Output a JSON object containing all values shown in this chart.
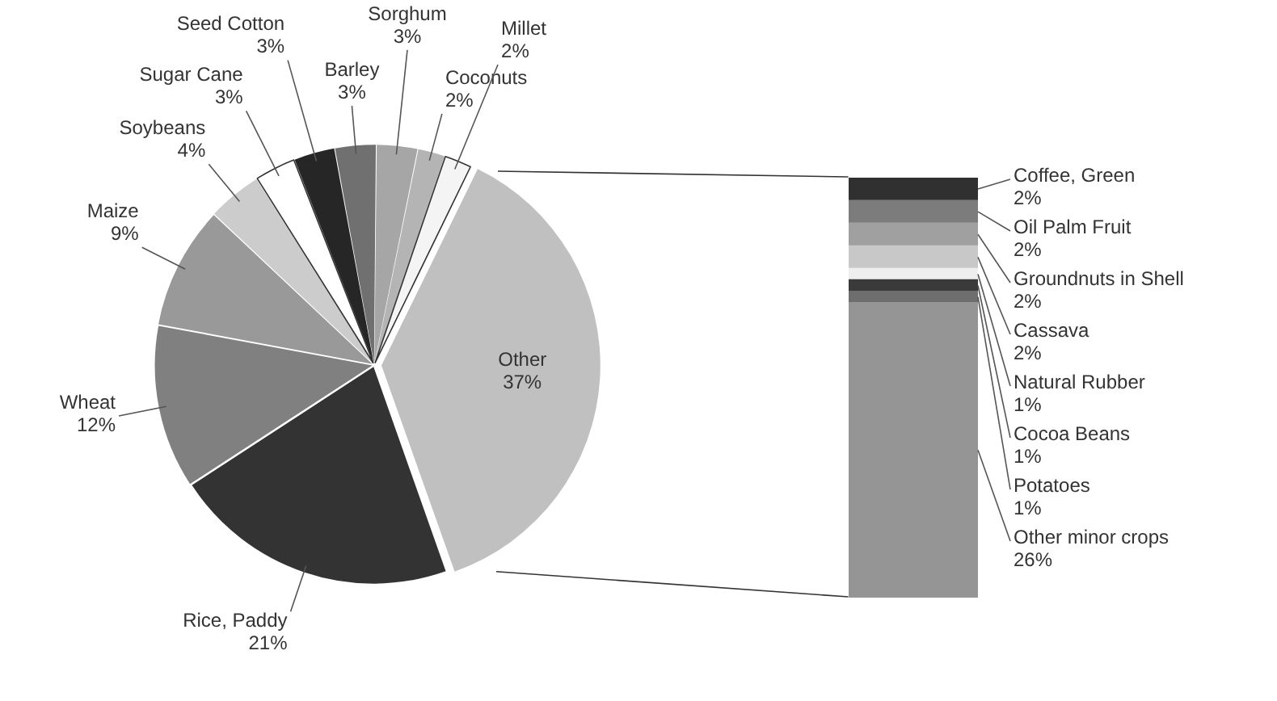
{
  "chart_data": [
    {
      "type": "pie",
      "categories": [
        "Other",
        "Rice, Paddy",
        "Wheat",
        "Maize",
        "Soybeans",
        "Sugar Cane",
        "Seed Cotton",
        "Barley",
        "Sorghum",
        "Coconuts",
        "Millet"
      ],
      "values": [
        37,
        21,
        12,
        9,
        4,
        3,
        3,
        3,
        3,
        2,
        2
      ],
      "colors": [
        "#c0c0c0",
        "#333333",
        "#808080",
        "#999999",
        "#cccccc",
        "#ffffff",
        "#262626",
        "#707070",
        "#a6a6a6",
        "#b4b4b4",
        "#f4f4f4"
      ],
      "value_labels": [
        "37%",
        "21%",
        "12%",
        "9%",
        "4%",
        "3%",
        "3%",
        "3%",
        "3%",
        "2%",
        "2%"
      ]
    },
    {
      "type": "bar",
      "stacked": true,
      "categories": [
        null
      ],
      "series": [
        {
          "name": "Other minor crops",
          "color": "#959595",
          "values": [
            26
          ],
          "value_labels": [
            "26%"
          ]
        },
        {
          "name": "Potatoes",
          "color": "#6e6e6e",
          "values": [
            1
          ],
          "value_labels": [
            "1%"
          ]
        },
        {
          "name": "Cocoa Beans",
          "color": "#3a3a3a",
          "values": [
            1
          ],
          "value_labels": [
            "1%"
          ]
        },
        {
          "name": "Natural Rubber",
          "color": "#eeeeee",
          "values": [
            1
          ],
          "value_labels": [
            "1%"
          ]
        },
        {
          "name": "Cassava",
          "color": "#c8c8c8",
          "values": [
            2
          ],
          "value_labels": [
            "2%"
          ]
        },
        {
          "name": "Groundnuts in Shell",
          "color": "#a0a0a0",
          "values": [
            2
          ],
          "value_labels": [
            "2%"
          ]
        },
        {
          "name": "Oil Palm Fruit",
          "color": "#7c7c7c",
          "values": [
            2
          ],
          "value_labels": [
            "2%"
          ]
        },
        {
          "name": "Coffee, Green",
          "color": "#303030",
          "values": [
            2
          ],
          "value_labels": [
            "2%"
          ]
        }
      ]
    }
  ]
}
